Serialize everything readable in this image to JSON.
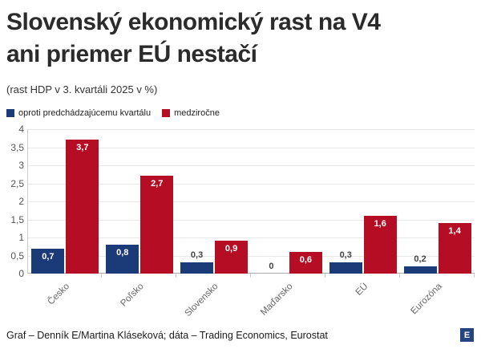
{
  "header": {
    "title": "Slovenský ekonomický rast na V4\nani priemer EÚ nestačí",
    "subtitle": "(rast HDP v 3. kvartáli 2025 v %)"
  },
  "legend": {
    "items": [
      {
        "label": "oproti predchádzajúcemu kvartálu",
        "color": "#1b3b78"
      },
      {
        "label": "medziročne",
        "color": "#b50d23"
      }
    ]
  },
  "chart_data": {
    "type": "bar",
    "title": "Slovenský ekonomický rast na V4 ani priemer EÚ nestačí",
    "subtitle": "(rast HDP v 3. kvartáli 2025 v %)",
    "categories": [
      "Česko",
      "Poľsko",
      "Slovensko",
      "Maďarsko",
      "EÚ",
      "Eurozóna"
    ],
    "series": [
      {
        "name": "oproti predchádzajúcemu kvartálu",
        "color": "#1b3b78",
        "values": [
          0.7,
          0.8,
          0.3,
          0,
          0.3,
          0.2
        ],
        "value_labels": [
          "0,7",
          "0,8",
          "0,3",
          "0",
          "0,3",
          "0,2"
        ]
      },
      {
        "name": "medziročne",
        "color": "#b50d23",
        "values": [
          3.7,
          2.7,
          0.9,
          0.6,
          1.6,
          1.4
        ],
        "value_labels": [
          "3,7",
          "2,7",
          "0,9",
          "0,6",
          "1,6",
          "1,4"
        ]
      }
    ],
    "xlabel": "",
    "ylabel": "",
    "ylim": [
      0,
      4
    ],
    "ytick_step": 0.5,
    "ytick_labels": [
      "0",
      "0,5",
      "1",
      "1,5",
      "2",
      "2,5",
      "3",
      "3,5",
      "4"
    ],
    "grid": true,
    "legend_position": "top-left"
  },
  "footer": {
    "credit": "Graf – Denník E/Martina Kláseková; dáta – Trading Economics, Eurostat",
    "logo_letter": "E"
  }
}
